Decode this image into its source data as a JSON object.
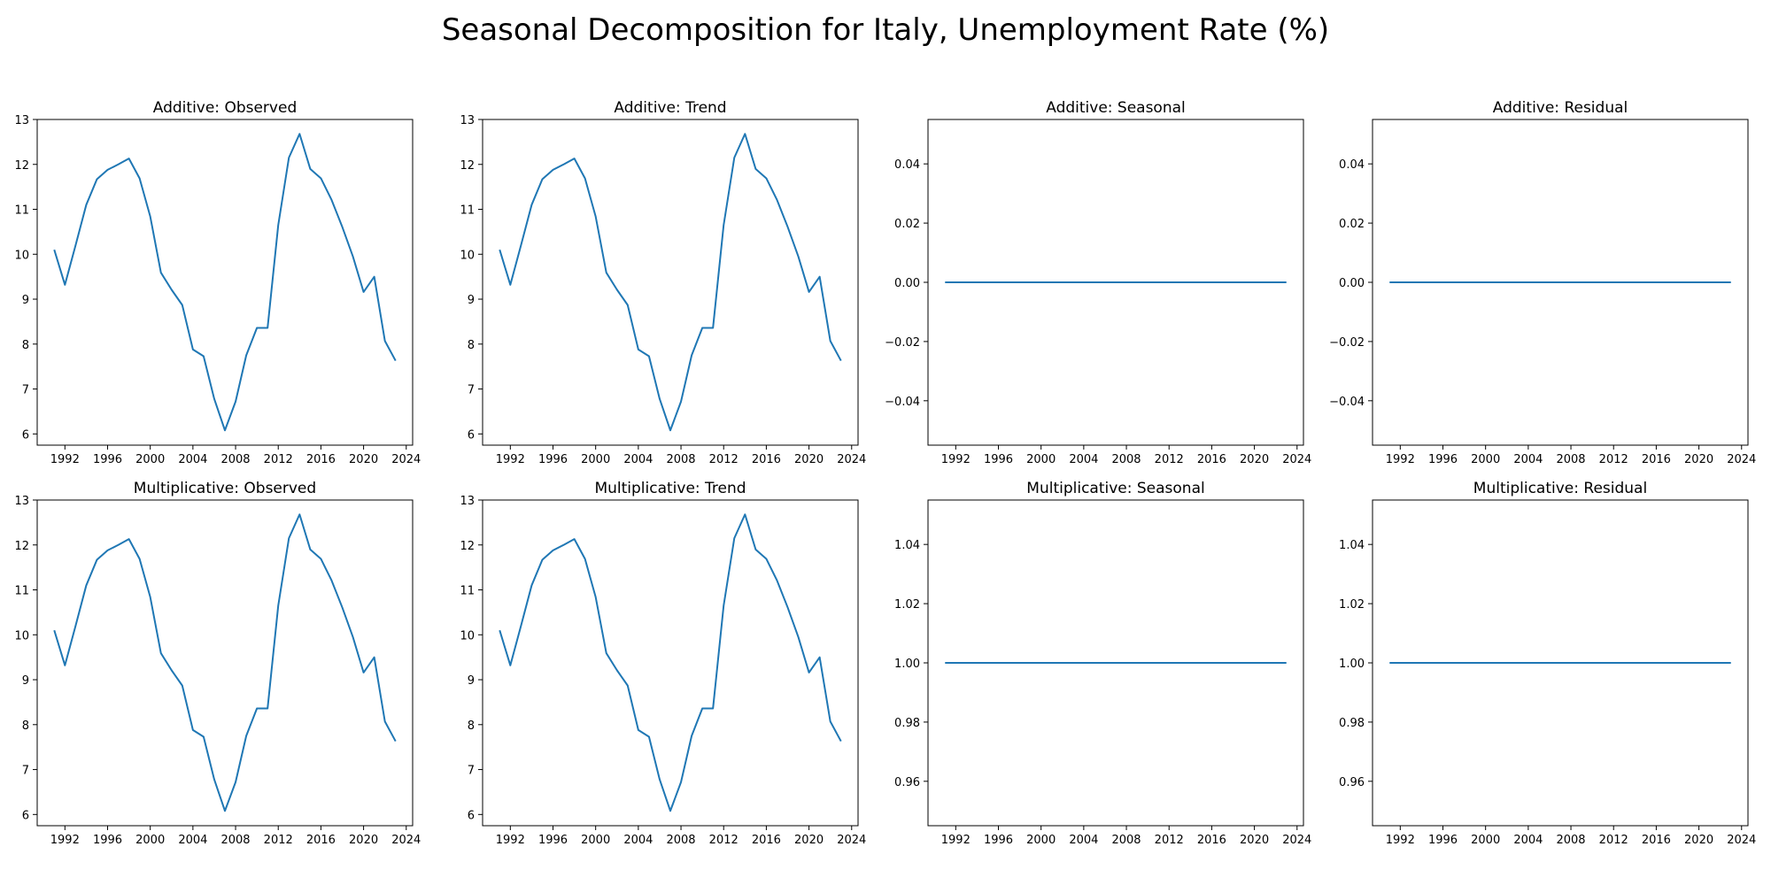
{
  "figure": {
    "title": "Seasonal Decomposition for Italy, Unemployment Rate (%)",
    "line_color": "#1f77b4"
  },
  "chart_data": [
    {
      "type": "line",
      "title": "Additive: Observed",
      "xlabel": "",
      "ylabel": "",
      "x": [
        1991,
        1992,
        1993,
        1994,
        1995,
        1996,
        1997,
        1998,
        1999,
        2000,
        2001,
        2002,
        2003,
        2004,
        2005,
        2006,
        2007,
        2008,
        2009,
        2010,
        2011,
        2012,
        2013,
        2014,
        2015,
        2016,
        2017,
        2018,
        2019,
        2020,
        2021,
        2022,
        2023
      ],
      "y": [
        10.1,
        9.32,
        10.2,
        11.1,
        11.67,
        11.88,
        12.0,
        12.13,
        11.69,
        10.84,
        9.59,
        9.21,
        8.87,
        7.88,
        7.73,
        6.78,
        6.08,
        6.72,
        7.75,
        8.36,
        8.36,
        10.65,
        12.15,
        12.68,
        11.9,
        11.69,
        11.21,
        10.61,
        9.95,
        9.16,
        9.5,
        8.07,
        7.63
      ],
      "xlim": [
        1989.4,
        2024.6
      ],
      "ylim": [
        5.75,
        13.0
      ],
      "xticks": [
        "1992",
        "1996",
        "2000",
        "2004",
        "2008",
        "2012",
        "2016",
        "2020",
        "2024"
      ],
      "yticks": [
        "6",
        "7",
        "8",
        "9",
        "10",
        "11",
        "12",
        "13"
      ],
      "grid": false
    },
    {
      "type": "line",
      "title": "Additive: Trend",
      "xlabel": "",
      "ylabel": "",
      "x": [
        1991,
        1992,
        1993,
        1994,
        1995,
        1996,
        1997,
        1998,
        1999,
        2000,
        2001,
        2002,
        2003,
        2004,
        2005,
        2006,
        2007,
        2008,
        2009,
        2010,
        2011,
        2012,
        2013,
        2014,
        2015,
        2016,
        2017,
        2018,
        2019,
        2020,
        2021,
        2022,
        2023
      ],
      "y": [
        10.1,
        9.32,
        10.2,
        11.1,
        11.67,
        11.88,
        12.0,
        12.13,
        11.69,
        10.84,
        9.59,
        9.21,
        8.87,
        7.88,
        7.73,
        6.78,
        6.08,
        6.72,
        7.75,
        8.36,
        8.36,
        10.65,
        12.15,
        12.68,
        11.9,
        11.69,
        11.21,
        10.61,
        9.95,
        9.16,
        9.5,
        8.07,
        7.63
      ],
      "xlim": [
        1989.4,
        2024.6
      ],
      "ylim": [
        5.75,
        13.0
      ],
      "xticks": [
        "1992",
        "1996",
        "2000",
        "2004",
        "2008",
        "2012",
        "2016",
        "2020",
        "2024"
      ],
      "yticks": [
        "6",
        "7",
        "8",
        "9",
        "10",
        "11",
        "12",
        "13"
      ],
      "grid": false
    },
    {
      "type": "line",
      "title": "Additive: Seasonal",
      "xlabel": "",
      "ylabel": "",
      "x": [
        1991,
        2023
      ],
      "y": [
        0.0,
        0.0
      ],
      "xlim": [
        1989.4,
        2024.6
      ],
      "ylim": [
        -0.055,
        0.055
      ],
      "xticks": [
        "1992",
        "1996",
        "2000",
        "2004",
        "2008",
        "2012",
        "2016",
        "2020",
        "2024"
      ],
      "yticks": [
        "−0.04",
        "−0.02",
        "0.00",
        "0.02",
        "0.04"
      ],
      "grid": false
    },
    {
      "type": "line",
      "title": "Additive: Residual",
      "xlabel": "",
      "ylabel": "",
      "x": [
        1991,
        2023
      ],
      "y": [
        0.0,
        0.0
      ],
      "xlim": [
        1989.4,
        2024.6
      ],
      "ylim": [
        -0.055,
        0.055
      ],
      "xticks": [
        "1992",
        "1996",
        "2000",
        "2004",
        "2008",
        "2012",
        "2016",
        "2020",
        "2024"
      ],
      "yticks": [
        "−0.04",
        "−0.02",
        "0.00",
        "0.02",
        "0.04"
      ],
      "grid": false
    },
    {
      "type": "line",
      "title": "Multiplicative: Observed",
      "xlabel": "",
      "ylabel": "",
      "x": [
        1991,
        1992,
        1993,
        1994,
        1995,
        1996,
        1997,
        1998,
        1999,
        2000,
        2001,
        2002,
        2003,
        2004,
        2005,
        2006,
        2007,
        2008,
        2009,
        2010,
        2011,
        2012,
        2013,
        2014,
        2015,
        2016,
        2017,
        2018,
        2019,
        2020,
        2021,
        2022,
        2023
      ],
      "y": [
        10.1,
        9.32,
        10.2,
        11.1,
        11.67,
        11.88,
        12.0,
        12.13,
        11.69,
        10.84,
        9.59,
        9.21,
        8.87,
        7.88,
        7.73,
        6.78,
        6.08,
        6.72,
        7.75,
        8.36,
        8.36,
        10.65,
        12.15,
        12.68,
        11.9,
        11.69,
        11.21,
        10.61,
        9.95,
        9.16,
        9.5,
        8.07,
        7.63
      ],
      "xlim": [
        1989.4,
        2024.6
      ],
      "ylim": [
        5.75,
        13.0
      ],
      "xticks": [
        "1992",
        "1996",
        "2000",
        "2004",
        "2008",
        "2012",
        "2016",
        "2020",
        "2024"
      ],
      "yticks": [
        "6",
        "7",
        "8",
        "9",
        "10",
        "11",
        "12",
        "13"
      ],
      "grid": false
    },
    {
      "type": "line",
      "title": "Multiplicative: Trend",
      "xlabel": "",
      "ylabel": "",
      "x": [
        1991,
        1992,
        1993,
        1994,
        1995,
        1996,
        1997,
        1998,
        1999,
        2000,
        2001,
        2002,
        2003,
        2004,
        2005,
        2006,
        2007,
        2008,
        2009,
        2010,
        2011,
        2012,
        2013,
        2014,
        2015,
        2016,
        2017,
        2018,
        2019,
        2020,
        2021,
        2022,
        2023
      ],
      "y": [
        10.1,
        9.32,
        10.2,
        11.1,
        11.67,
        11.88,
        12.0,
        12.13,
        11.69,
        10.84,
        9.59,
        9.21,
        8.87,
        7.88,
        7.73,
        6.78,
        6.08,
        6.72,
        7.75,
        8.36,
        8.36,
        10.65,
        12.15,
        12.68,
        11.9,
        11.69,
        11.21,
        10.61,
        9.95,
        9.16,
        9.5,
        8.07,
        7.63
      ],
      "xlim": [
        1989.4,
        2024.6
      ],
      "ylim": [
        5.75,
        13.0
      ],
      "xticks": [
        "1992",
        "1996",
        "2000",
        "2004",
        "2008",
        "2012",
        "2016",
        "2020",
        "2024"
      ],
      "yticks": [
        "6",
        "7",
        "8",
        "9",
        "10",
        "11",
        "12",
        "13"
      ],
      "grid": false
    },
    {
      "type": "line",
      "title": "Multiplicative: Seasonal",
      "xlabel": "",
      "ylabel": "",
      "x": [
        1991,
        2023
      ],
      "y": [
        1.0,
        1.0
      ],
      "xlim": [
        1989.4,
        2024.6
      ],
      "ylim": [
        0.945,
        1.055
      ],
      "xticks": [
        "1992",
        "1996",
        "2000",
        "2004",
        "2008",
        "2012",
        "2016",
        "2020",
        "2024"
      ],
      "yticks": [
        "0.96",
        "0.98",
        "1.00",
        "1.02",
        "1.04"
      ],
      "grid": false
    },
    {
      "type": "line",
      "title": "Multiplicative: Residual",
      "xlabel": "",
      "ylabel": "",
      "x": [
        1991,
        2023
      ],
      "y": [
        1.0,
        1.0
      ],
      "xlim": [
        1989.4,
        2024.6
      ],
      "ylim": [
        0.945,
        1.055
      ],
      "xticks": [
        "1992",
        "1996",
        "2000",
        "2004",
        "2008",
        "2012",
        "2016",
        "2020",
        "2024"
      ],
      "yticks": [
        "0.96",
        "0.98",
        "1.00",
        "1.02",
        "1.04"
      ],
      "grid": false
    }
  ]
}
